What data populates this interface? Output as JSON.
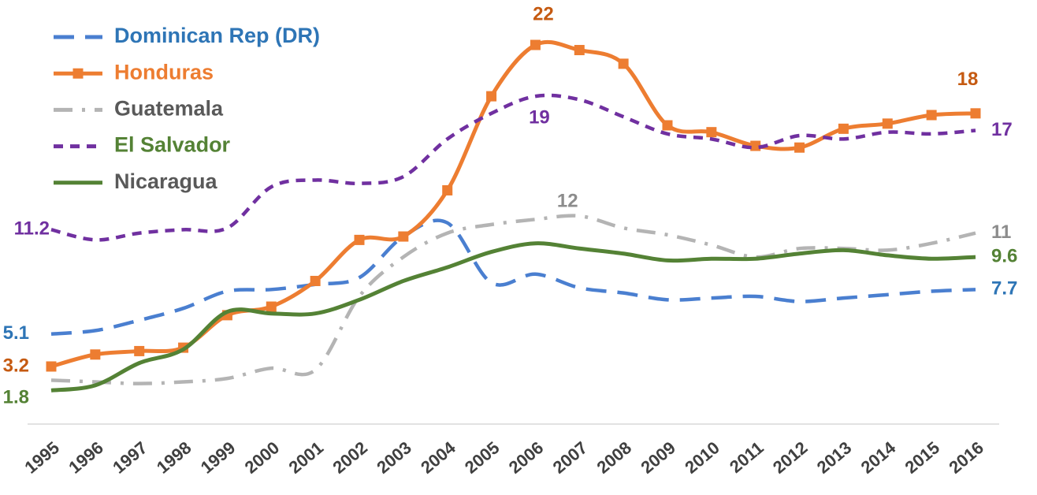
{
  "chart_data": {
    "type": "line",
    "categories": [
      "1995",
      "1996",
      "1997",
      "1998",
      "1999",
      "2000",
      "2001",
      "2002",
      "2003",
      "2004",
      "2005",
      "2006",
      "2007",
      "2008",
      "2009",
      "2010",
      "2011",
      "2012",
      "2013",
      "2014",
      "2015",
      "2016"
    ],
    "ylim": [
      0,
      24.6
    ],
    "legend": "top-left",
    "series": [
      {
        "name": "Dominican Rep (DR)",
        "color": "#4a7fd0",
        "label_color": "#2e75b6",
        "legend_color": "#2e75b6",
        "dash": "dash",
        "marker": null,
        "values": [
          5.1,
          5.3,
          5.9,
          6.6,
          7.6,
          7.7,
          8.0,
          8.4,
          10.8,
          11.6,
          8.1,
          8.6,
          7.8,
          7.5,
          7.1,
          7.2,
          7.3,
          7.0,
          7.2,
          7.4,
          7.6,
          7.7
        ],
        "value_labels": [
          "5.1",
          null,
          null,
          null,
          null,
          null,
          null,
          null,
          null,
          null,
          null,
          null,
          null,
          null,
          null,
          null,
          null,
          null,
          null,
          null,
          null,
          "7.7"
        ]
      },
      {
        "name": "Honduras",
        "color": "#ed7d31",
        "label_color": "#c55a11",
        "legend_color": "#ed7d31",
        "dash": "solid",
        "marker": "square",
        "values": [
          3.2,
          3.9,
          4.1,
          4.3,
          6.2,
          6.7,
          8.2,
          10.6,
          10.8,
          13.5,
          19.0,
          22,
          21.7,
          20.9,
          17.3,
          16.9,
          16.1,
          16.0,
          17.1,
          17.4,
          17.9,
          18
        ],
        "value_labels": [
          "3.2",
          null,
          null,
          null,
          null,
          null,
          null,
          null,
          null,
          null,
          null,
          "22",
          null,
          null,
          null,
          null,
          null,
          null,
          null,
          null,
          null,
          "18"
        ]
      },
      {
        "name": "Guatemala",
        "color": "#b4b4b4",
        "label_color": "#8c8c8c",
        "legend_color": "#595959",
        "dash": "dashdot",
        "marker": null,
        "values": [
          2.4,
          2.3,
          2.2,
          2.3,
          2.5,
          3.1,
          3.0,
          7.3,
          9.6,
          11.0,
          11.5,
          11.8,
          12,
          11.3,
          10.9,
          10.3,
          9.6,
          10.1,
          10.1,
          10.0,
          10.4,
          11
        ],
        "value_labels": [
          null,
          null,
          null,
          null,
          null,
          null,
          null,
          null,
          null,
          null,
          null,
          null,
          "12",
          null,
          null,
          null,
          null,
          null,
          null,
          null,
          null,
          "11"
        ]
      },
      {
        "name": "El Salvador",
        "color": "#7030a0",
        "label_color": "#7030a0",
        "legend_color": "#548235",
        "dash": "shortdash",
        "marker": null,
        "values": [
          11.2,
          10.6,
          11.0,
          11.2,
          11.3,
          13.7,
          14.1,
          13.9,
          14.3,
          16.5,
          18.0,
          19,
          18.8,
          17.8,
          16.8,
          16.5,
          16.0,
          16.7,
          16.5,
          16.9,
          16.8,
          17
        ],
        "value_labels": [
          "11.2",
          null,
          null,
          null,
          null,
          null,
          null,
          null,
          null,
          null,
          null,
          "19",
          null,
          null,
          null,
          null,
          null,
          null,
          null,
          null,
          null,
          "17"
        ]
      },
      {
        "name": "Nicaragua",
        "color": "#548235",
        "label_color": "#548235",
        "legend_color": "#595959",
        "dash": "solid",
        "marker": null,
        "values": [
          1.8,
          2.1,
          3.4,
          4.2,
          6.4,
          6.3,
          6.3,
          7.1,
          8.2,
          9.0,
          9.9,
          10.4,
          10.1,
          9.8,
          9.4,
          9.5,
          9.5,
          9.8,
          10.0,
          9.7,
          9.5,
          9.6
        ],
        "value_labels": [
          "1.8",
          null,
          null,
          null,
          null,
          null,
          null,
          null,
          null,
          null,
          null,
          null,
          null,
          null,
          null,
          null,
          null,
          null,
          null,
          null,
          null,
          "9.6"
        ]
      }
    ]
  }
}
